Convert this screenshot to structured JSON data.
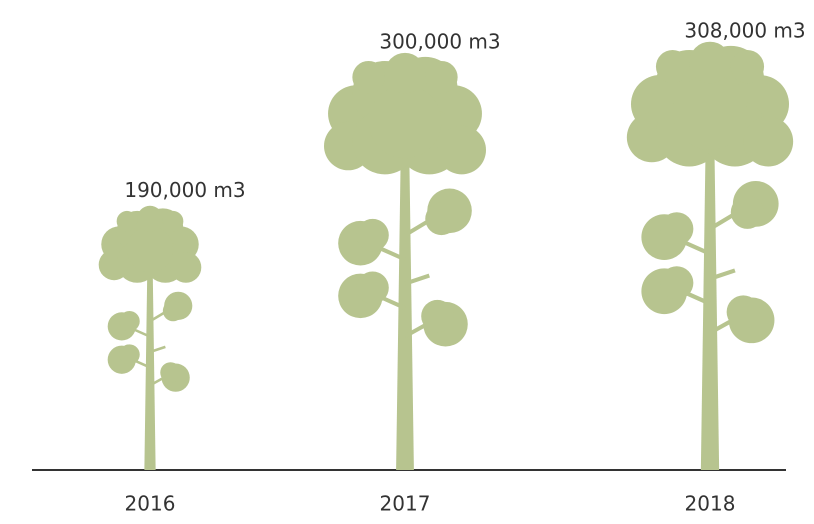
{
  "chart_data": {
    "type": "pictograph",
    "categories": [
      "2016",
      "2017",
      "2018"
    ],
    "values": [
      190000,
      300000,
      308000
    ],
    "value_labels": [
      "190,000 m3",
      "300,000 m3",
      "308,000 m3"
    ],
    "color": "#b7c48f"
  }
}
